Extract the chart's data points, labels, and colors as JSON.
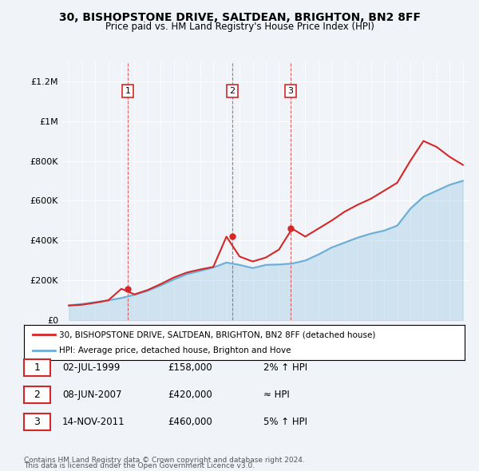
{
  "title": "30, BISHOPSTONE DRIVE, SALTDEAN, BRIGHTON, BN2 8FF",
  "subtitle": "Price paid vs. HM Land Registry's House Price Index (HPI)",
  "legend_line1": "30, BISHOPSTONE DRIVE, SALTDEAN, BRIGHTON, BN2 8FF (detached house)",
  "legend_line2": "HPI: Average price, detached house, Brighton and Hove",
  "footer1": "Contains HM Land Registry data © Crown copyright and database right 2024.",
  "footer2": "This data is licensed under the Open Government Licence v3.0.",
  "sales": [
    {
      "label": "1",
      "date": "02-JUL-1999",
      "price": 158000,
      "note": "2% ↑ HPI"
    },
    {
      "label": "2",
      "date": "08-JUN-2007",
      "price": 420000,
      "note": "≈ HPI"
    },
    {
      "label": "3",
      "date": "14-NOV-2011",
      "price": 460000,
      "note": "5% ↑ HPI"
    }
  ],
  "sale_years": [
    1999.5,
    2007.45,
    2011.87
  ],
  "sale_prices": [
    158000,
    420000,
    460000
  ],
  "hpi_color": "#6baed6",
  "price_color": "#d62728",
  "background_color": "#f0f4f8",
  "plot_bg": "#f0f4f8",
  "ylim": [
    0,
    1300000
  ],
  "xlim_start": 1994.5,
  "xlim_end": 2025.5,
  "hpi_data_years": [
    1995,
    1996,
    1997,
    1998,
    1999,
    2000,
    2001,
    2002,
    2003,
    2004,
    2005,
    2006,
    2007,
    2008,
    2009,
    2010,
    2011,
    2012,
    2013,
    2014,
    2015,
    2016,
    2017,
    2018,
    2019,
    2020,
    2021,
    2022,
    2023,
    2024,
    2025
  ],
  "hpi_values": [
    75000,
    82000,
    91000,
    100000,
    112000,
    128000,
    148000,
    175000,
    205000,
    232000,
    248000,
    265000,
    290000,
    278000,
    262000,
    278000,
    280000,
    285000,
    300000,
    330000,
    365000,
    390000,
    415000,
    435000,
    450000,
    475000,
    560000,
    620000,
    650000,
    680000,
    700000
  ],
  "price_data_years": [
    1995,
    1996,
    1997,
    1998,
    1999,
    2000,
    2001,
    2002,
    2003,
    2004,
    2005,
    2006,
    2007,
    2008,
    2009,
    2010,
    2011,
    2012,
    2013,
    2014,
    2015,
    2016,
    2017,
    2018,
    2019,
    2020,
    2021,
    2022,
    2023,
    2024,
    2025
  ],
  "price_values": [
    74000,
    78000,
    88000,
    100000,
    158000,
    130000,
    152000,
    182000,
    215000,
    240000,
    255000,
    268000,
    420000,
    320000,
    295000,
    315000,
    355000,
    460000,
    420000,
    460000,
    500000,
    545000,
    580000,
    610000,
    650000,
    690000,
    800000,
    900000,
    870000,
    820000,
    780000
  ]
}
